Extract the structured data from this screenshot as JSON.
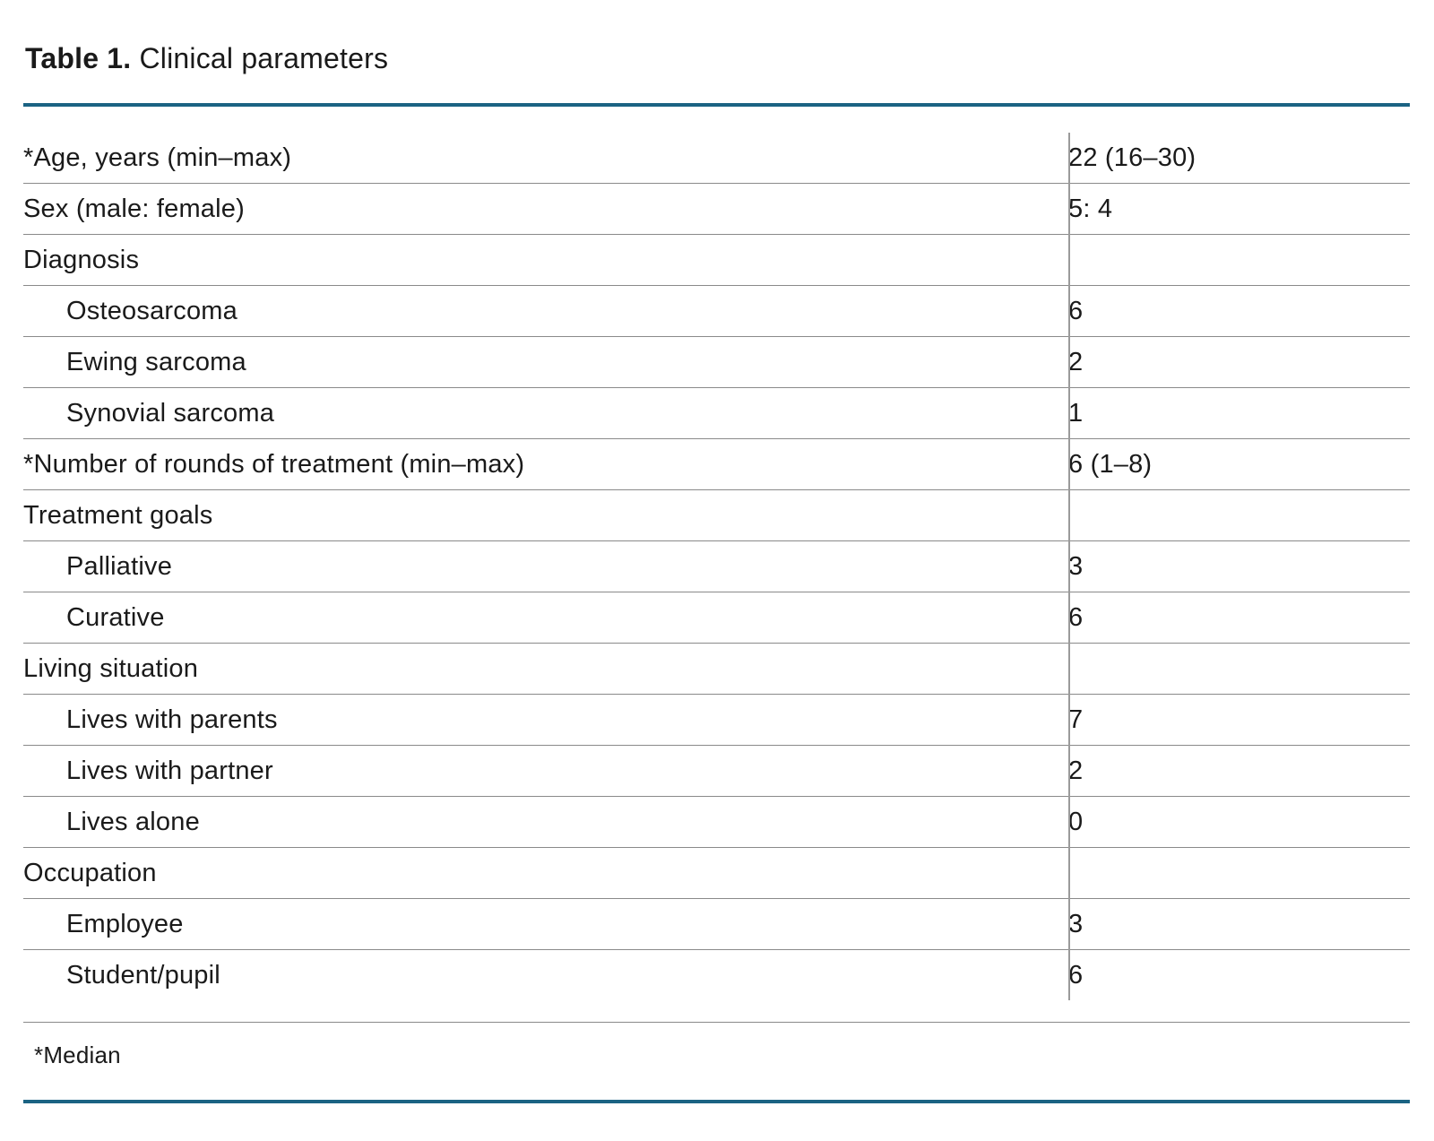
{
  "title": {
    "label": "Table 1.",
    "text": "Clinical parameters"
  },
  "colors": {
    "accent_rule": "#1b6383",
    "row_line": "#8a8a8a",
    "column_divider": "#9a9a9a",
    "text": "#1a1a1a"
  },
  "table": {
    "rows": [
      {
        "label": "*Age, years (min–max)",
        "value": "22 (16–30)",
        "indent": false
      },
      {
        "label": "Sex (male: female)",
        "value": "5: 4",
        "indent": false
      },
      {
        "label": "Diagnosis",
        "value": "",
        "indent": false
      },
      {
        "label": "Osteosarcoma",
        "value": "6",
        "indent": true
      },
      {
        "label": "Ewing sarcoma",
        "value": "2",
        "indent": true
      },
      {
        "label": "Synovial sarcoma",
        "value": "1",
        "indent": true
      },
      {
        "label": "*Number of rounds of treatment (min–max)",
        "value": "6 (1–8)",
        "indent": false
      },
      {
        "label": "Treatment goals",
        "value": "",
        "indent": false
      },
      {
        "label": "Palliative",
        "value": "3",
        "indent": true
      },
      {
        "label": "Curative",
        "value": "6",
        "indent": true
      },
      {
        "label": "Living situation",
        "value": "",
        "indent": false
      },
      {
        "label": "Lives with parents",
        "value": "7",
        "indent": true
      },
      {
        "label": "Lives with partner",
        "value": "2",
        "indent": true
      },
      {
        "label": "Lives alone",
        "value": "0",
        "indent": true
      },
      {
        "label": "Occupation",
        "value": "",
        "indent": false
      },
      {
        "label": "Employee",
        "value": "3",
        "indent": true
      },
      {
        "label": "Student/pupil",
        "value": "6",
        "indent": true
      }
    ]
  },
  "footnote": "*Median"
}
